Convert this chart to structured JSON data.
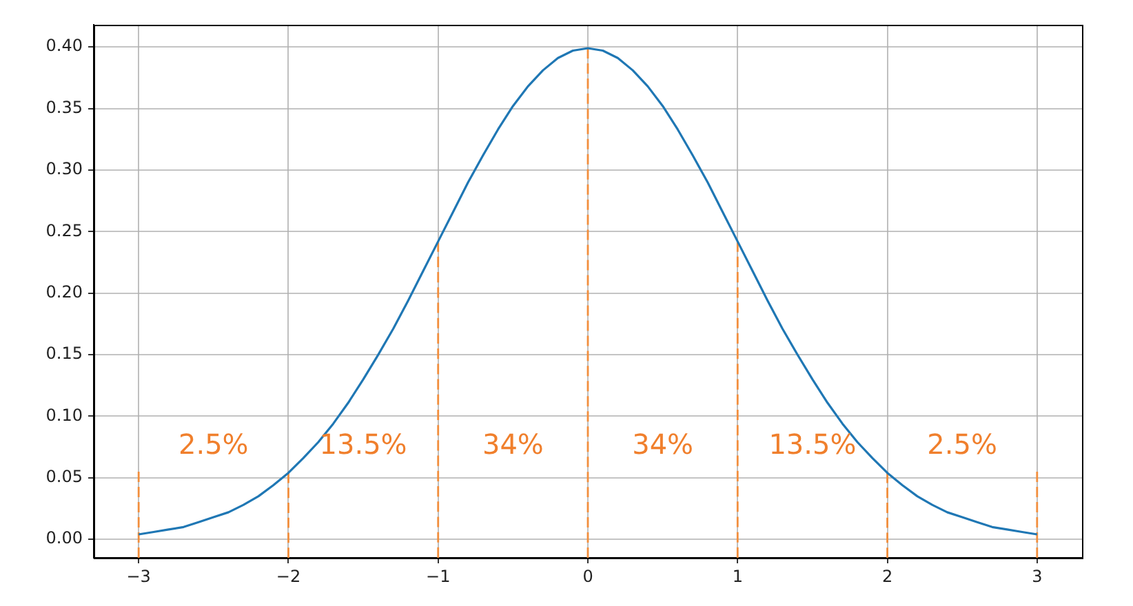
{
  "chart_data": {
    "type": "line",
    "xlim": [
      -3.3,
      3.3
    ],
    "ylim": [
      -0.015,
      0.418
    ],
    "xticks": [
      {
        "value": -3,
        "label": "−3"
      },
      {
        "value": -2,
        "label": "−2"
      },
      {
        "value": -1,
        "label": "−1"
      },
      0,
      1,
      2,
      3
    ],
    "yticks": [
      {
        "value": 0,
        "label": "0.00"
      },
      0.05,
      {
        "value": 0.1,
        "label": "0.10"
      },
      0.15,
      {
        "value": 0.2,
        "label": "0.20"
      },
      0.25,
      {
        "value": 0.3,
        "label": "0.30"
      },
      0.35,
      {
        "value": 0.4,
        "label": "0.40"
      }
    ],
    "grid": true,
    "marker": "none",
    "series": [
      {
        "color": "#1f77b4",
        "line_style": "solid",
        "x": [
          -3,
          -2.9,
          -2.8,
          -2.7,
          -2.6,
          -2.5,
          -2.4,
          -2.3,
          -2.2,
          -2.1,
          -2,
          -1.9,
          -1.8,
          -1.7,
          -1.6,
          -1.5,
          -1.4,
          -1.3,
          -1.2,
          -1.1,
          -1,
          -0.9,
          -0.8,
          -0.7,
          -0.6,
          -0.5,
          -0.4,
          -0.3,
          -0.2,
          -0.1,
          0,
          0.1,
          0.2,
          0.3,
          0.4,
          0.5,
          0.6,
          0.7,
          0.8,
          0.9,
          1,
          1.1,
          1.2,
          1.3,
          1.4,
          1.5,
          1.6,
          1.7,
          1.8,
          1.9,
          2,
          2.1,
          2.2,
          2.3,
          2.4,
          2.5,
          2.6,
          2.7,
          2.8,
          2.9,
          3
        ],
        "values": [
          0.004,
          0.006,
          0.008,
          0.01,
          0.014,
          0.018,
          0.022,
          0.028,
          0.035,
          0.044,
          0.054,
          0.066,
          0.079,
          0.094,
          0.111,
          0.13,
          0.15,
          0.171,
          0.194,
          0.218,
          0.242,
          0.266,
          0.29,
          0.312,
          0.333,
          0.352,
          0.368,
          0.381,
          0.391,
          0.397,
          0.399,
          0.397,
          0.391,
          0.381,
          0.368,
          0.352,
          0.333,
          0.312,
          0.29,
          0.266,
          0.242,
          0.218,
          0.194,
          0.171,
          0.15,
          0.13,
          0.111,
          0.094,
          0.079,
          0.066,
          0.054,
          0.044,
          0.035,
          0.028,
          0.022,
          0.018,
          0.014,
          0.01,
          0.008,
          0.006,
          0.004
        ]
      },
      {
        "color": "#f28e3c",
        "line_style": "dashed",
        "x": [
          -3,
          -3
        ],
        "values": [
          -0.015,
          0.055
        ]
      },
      {
        "color": "#f28e3c",
        "line_style": "dashed",
        "x": [
          -2,
          -2
        ],
        "values": [
          -0.015,
          0.054
        ]
      },
      {
        "color": "#f28e3c",
        "line_style": "dashed",
        "x": [
          -1,
          -1
        ],
        "values": [
          -0.015,
          0.242
        ]
      },
      {
        "color": "#f28e3c",
        "line_style": "dashed",
        "x": [
          0,
          0
        ],
        "values": [
          -0.015,
          0.399
        ]
      },
      {
        "color": "#f28e3c",
        "line_style": "dashed",
        "x": [
          1,
          1
        ],
        "values": [
          -0.015,
          0.242
        ]
      },
      {
        "color": "#f28e3c",
        "line_style": "dashed",
        "x": [
          2,
          2
        ],
        "values": [
          -0.015,
          0.054
        ]
      },
      {
        "color": "#f28e3c",
        "line_style": "dashed",
        "x": [
          3,
          3
        ],
        "values": [
          -0.015,
          0.055
        ]
      }
    ],
    "annotations": [
      "2.5%",
      "13.5%",
      "34%",
      "34%",
      "13.5%",
      "2.5%"
    ]
  }
}
